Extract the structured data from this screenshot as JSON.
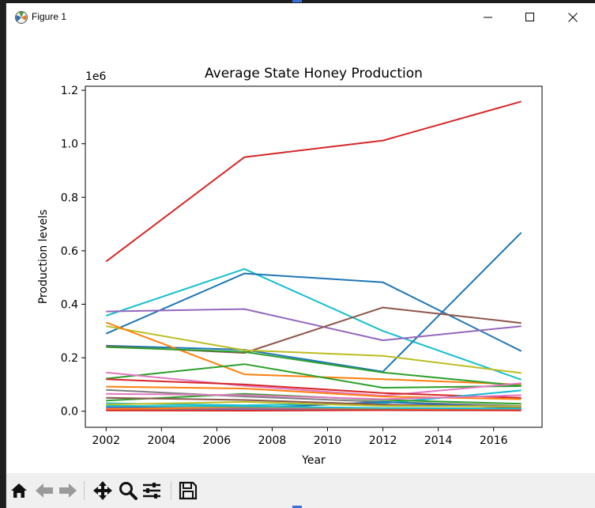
{
  "window": {
    "title": "Figure 1",
    "app_icon": "matplotlib-icon",
    "controls": [
      "minimize-icon",
      "maximize-icon",
      "close-icon"
    ]
  },
  "toolbar": {
    "buttons": [
      {
        "name": "home-button",
        "icon": "home-icon"
      },
      {
        "name": "back-button",
        "icon": "arrow-left-icon"
      },
      {
        "name": "forward-button",
        "icon": "arrow-right-icon"
      },
      {
        "name": "pan-button",
        "icon": "move-icon"
      },
      {
        "name": "zoom-button",
        "icon": "magnifier-icon"
      },
      {
        "name": "configure-subplots-button",
        "icon": "sliders-icon"
      },
      {
        "name": "save-button",
        "icon": "floppy-disk-icon"
      }
    ]
  },
  "chart_data": {
    "type": "line",
    "title": "Average State Honey Production",
    "xlabel": "Year",
    "ylabel": "Production levels",
    "offset_text": "1e6",
    "x": [
      2002,
      2007,
      2012,
      2017
    ],
    "xlim": [
      2001.25,
      2017.75
    ],
    "ylim": [
      -60000,
      1215000
    ],
    "xticks": [
      2002,
      2004,
      2006,
      2008,
      2010,
      2012,
      2014,
      2016
    ],
    "yticks": [
      0.0,
      0.2,
      0.4,
      0.6,
      0.8,
      1.0,
      1.2
    ],
    "ytick_labels": [
      "0.0",
      "0.2",
      "0.4",
      "0.6",
      "0.8",
      "1.0",
      "1.2"
    ],
    "grid": false,
    "legend": "none",
    "series": [
      {
        "color": "#d62728",
        "values": [
          560000,
          950000,
          1012000,
          1158000
        ]
      },
      {
        "color": "#17becf",
        "values": [
          357000,
          532000,
          300000,
          118000
        ]
      },
      {
        "color": "#1f77b4",
        "values": [
          290000,
          515000,
          482000,
          225000
        ]
      },
      {
        "color": "#1f77b4",
        "values": [
          245000,
          230000,
          148000,
          668000
        ]
      },
      {
        "color": "#9467bd",
        "values": [
          373000,
          382000,
          265000,
          318000
        ]
      },
      {
        "color": "#8c564b",
        "values": [
          243000,
          218000,
          388000,
          330000
        ]
      },
      {
        "color": "#bcbd22",
        "values": [
          318000,
          228000,
          207000,
          143000
        ]
      },
      {
        "color": "#ff7f0e",
        "values": [
          332000,
          138000,
          120000,
          100000
        ]
      },
      {
        "color": "#2ca02c",
        "values": [
          240000,
          222000,
          145000,
          95000
        ]
      },
      {
        "color": "#2ca02c",
        "values": [
          122000,
          176000,
          88000,
          94000
        ]
      },
      {
        "color": "#e377c2",
        "values": [
          145000,
          95000,
          58000,
          105000
        ]
      },
      {
        "color": "#d62728",
        "values": [
          120000,
          100000,
          68000,
          50000
        ]
      },
      {
        "color": "#ff7f0e",
        "values": [
          92000,
          85000,
          55000,
          45000
        ]
      },
      {
        "color": "#7f7f7f",
        "values": [
          80000,
          55000,
          35000,
          20000
        ]
      },
      {
        "color": "#17becf",
        "values": [
          30000,
          22000,
          30000,
          78000
        ]
      },
      {
        "color": "#2ca02c",
        "values": [
          40000,
          65000,
          42000,
          28000
        ]
      },
      {
        "color": "#1f77b4",
        "values": [
          15000,
          10000,
          35000,
          12000
        ]
      },
      {
        "color": "#8c564b",
        "values": [
          50000,
          42000,
          25000,
          15000
        ]
      },
      {
        "color": "#e377c2",
        "values": [
          65000,
          60000,
          45000,
          60000
        ]
      },
      {
        "color": "#bcbd22",
        "values": [
          25000,
          35000,
          20000,
          18000
        ]
      },
      {
        "color": "#9467bd",
        "values": [
          12000,
          8000,
          10000,
          9000
        ]
      },
      {
        "color": "#7f7f7f",
        "values": [
          5000,
          4000,
          6000,
          5000
        ]
      },
      {
        "color": "#ff7f0e",
        "values": [
          8000,
          15000,
          10000,
          8000
        ]
      },
      {
        "color": "#d62728",
        "values": [
          3000,
          2000,
          4000,
          3000
        ]
      },
      {
        "color": "#17becf",
        "values": [
          20000,
          18000,
          12000,
          10000
        ]
      }
    ]
  }
}
